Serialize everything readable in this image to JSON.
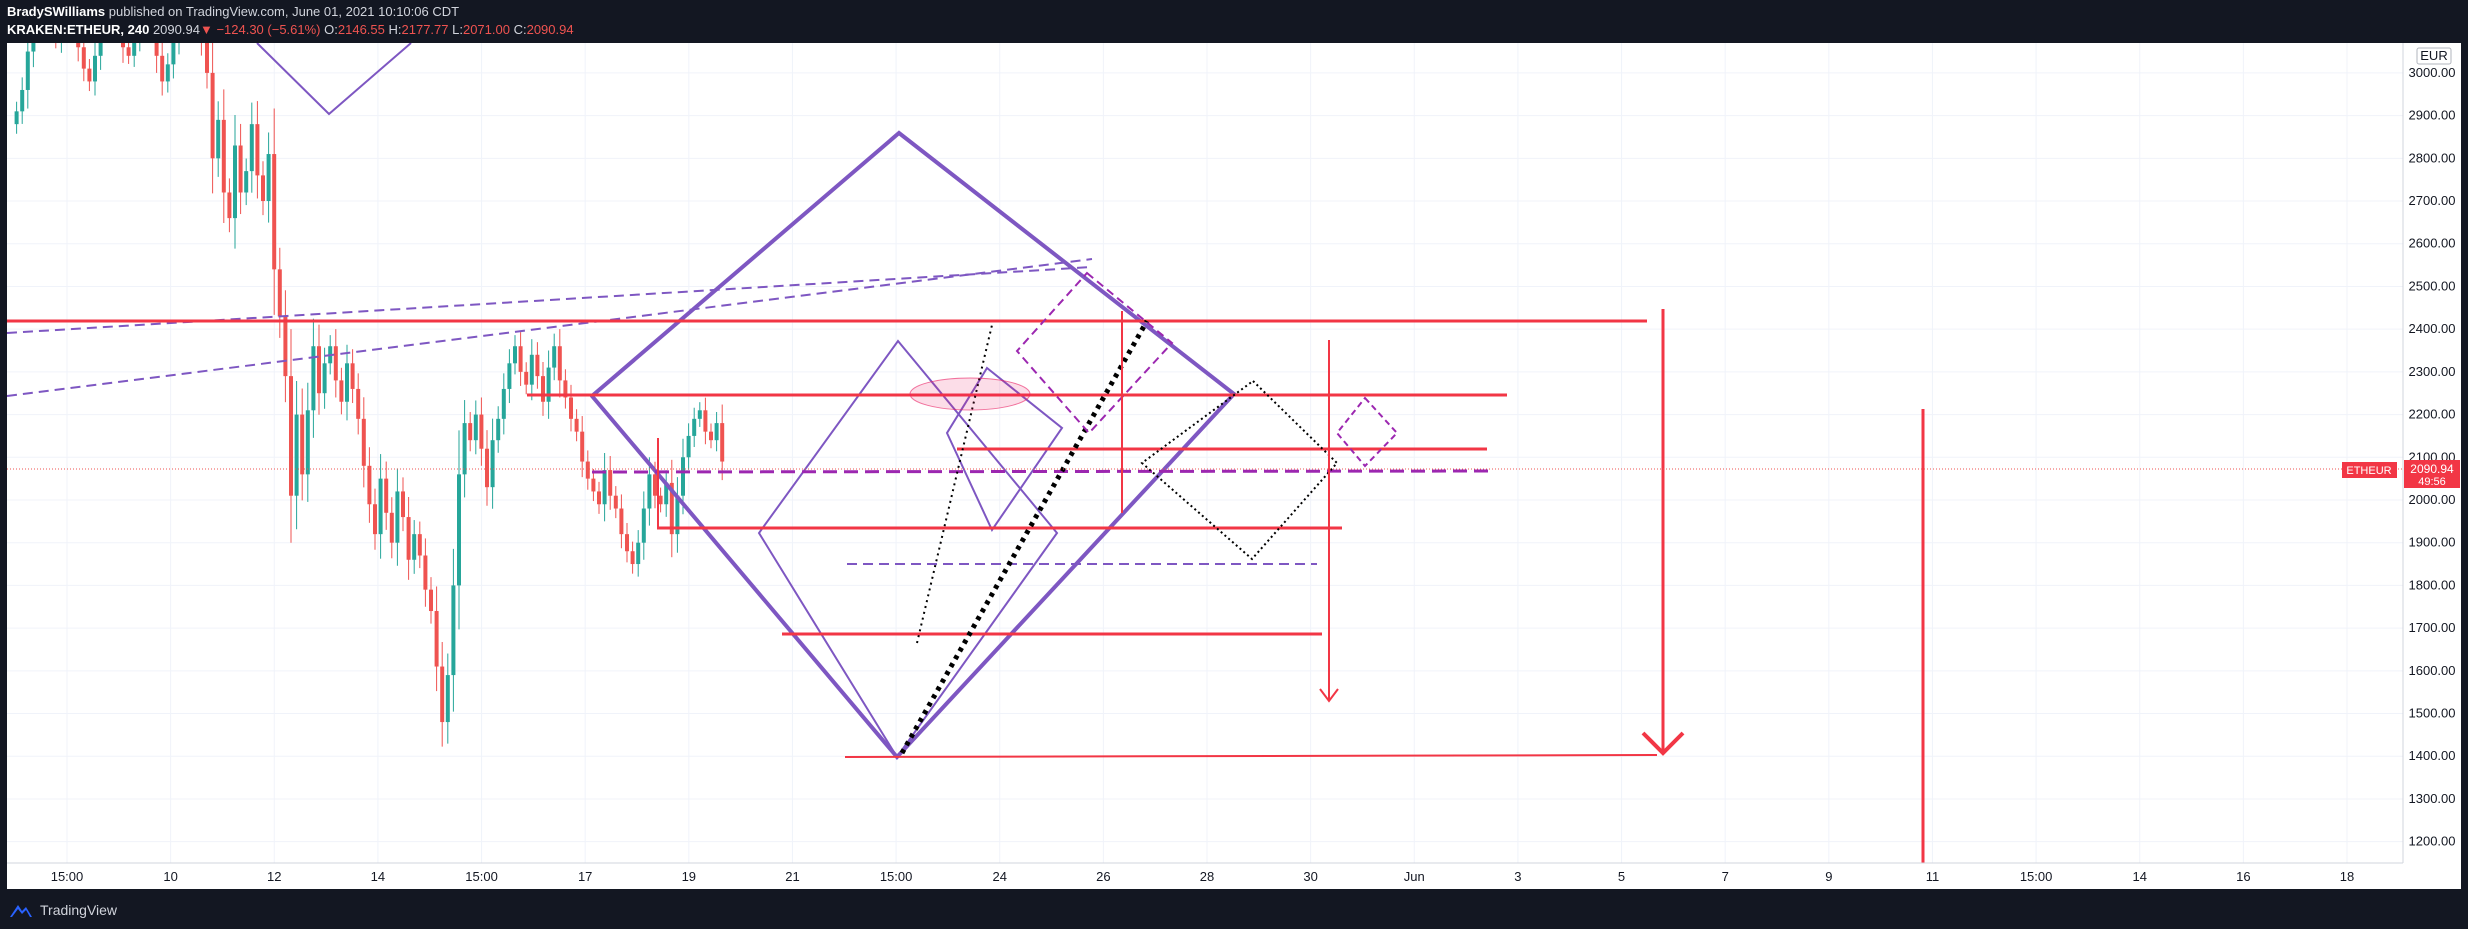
{
  "header": {
    "author": "BradySWilliams",
    "published_text": "published on TradingView.com, June 01, 2021 10:10:06 CDT",
    "symbol": "KRAKEN:ETHEUR, 240",
    "last_price": "2090.94",
    "change": "−124.30 (−5.61%)",
    "open_label": "O:",
    "open": "2146.55",
    "high_label": "H:",
    "high": "2177.77",
    "low_label": "L:",
    "low": "2071.00",
    "close_label": "C:",
    "close": "2090.94"
  },
  "footer": {
    "brand": "TradingView"
  },
  "colors": {
    "up": "#26a69a",
    "down": "#ef5350",
    "purple": "#7e57c2",
    "drawing_red": "#f23645"
  },
  "chart_data": {
    "type": "candlestick",
    "symbol": "ETHEUR",
    "currency": "EUR",
    "interval": "240",
    "ylim": [
      1150,
      3070
    ],
    "y_ticks": [
      3000,
      2900,
      2800,
      2700,
      2600,
      2500,
      2400,
      2300,
      2200,
      2100,
      2000,
      1900,
      1800,
      1700,
      1600,
      1500,
      1400,
      1300,
      1200
    ],
    "x_ticks": [
      "15:00",
      "10",
      "12",
      "14",
      "15:00",
      "17",
      "19",
      "21",
      "15:00",
      "24",
      "26",
      "28",
      "30",
      "Jun",
      "3",
      "5",
      "7",
      "9",
      "11",
      "15:00",
      "14",
      "16",
      "18"
    ],
    "last_price_label": {
      "symbol": "ETHEUR",
      "price": "2090.94",
      "countdown": "49:56"
    },
    "price_series": [
      2880,
      2910,
      2960,
      3050,
      3120,
      3160,
      3150,
      3110,
      3080,
      3140,
      3170,
      3120,
      3060,
      3010,
      2980,
      3040,
      3100,
      3150,
      3180,
      3130,
      3060,
      3040,
      3080,
      3130,
      3160,
      3120,
      3040,
      2980,
      3020,
      3080,
      3150,
      3190,
      3170,
      3120,
      3070,
      3000,
      2800,
      2890,
      2720,
      2660,
      2830,
      2720,
      2770,
      2880,
      2760,
      2700,
      2810,
      2540,
      2430,
      2290,
      2010,
      2200,
      2060,
      2210,
      2360,
      2250,
      2320,
      2360,
      2280,
      2230,
      2320,
      2260,
      2190,
      2080,
      1990,
      1920,
      2050,
      1970,
      1900,
      2020,
      1960,
      1860,
      1920,
      1870,
      1790,
      1740,
      1610,
      1480,
      1590,
      1800,
      2060,
      2180,
      2140,
      2200,
      2120,
      2030,
      2140,
      2190,
      2260,
      2320,
      2360,
      2300,
      2270,
      2340,
      2290,
      2230,
      2310,
      2360,
      2280,
      2240,
      2190,
      2160,
      2090,
      2050,
      2020,
      1990,
      2070,
      2010,
      1980,
      1920,
      1880,
      1850,
      1900,
      1980,
      2060,
      2010,
      1990,
      2040,
      1920,
      2010,
      2100,
      2150,
      2190,
      2210,
      2160,
      2140,
      2180,
      2090
    ]
  }
}
